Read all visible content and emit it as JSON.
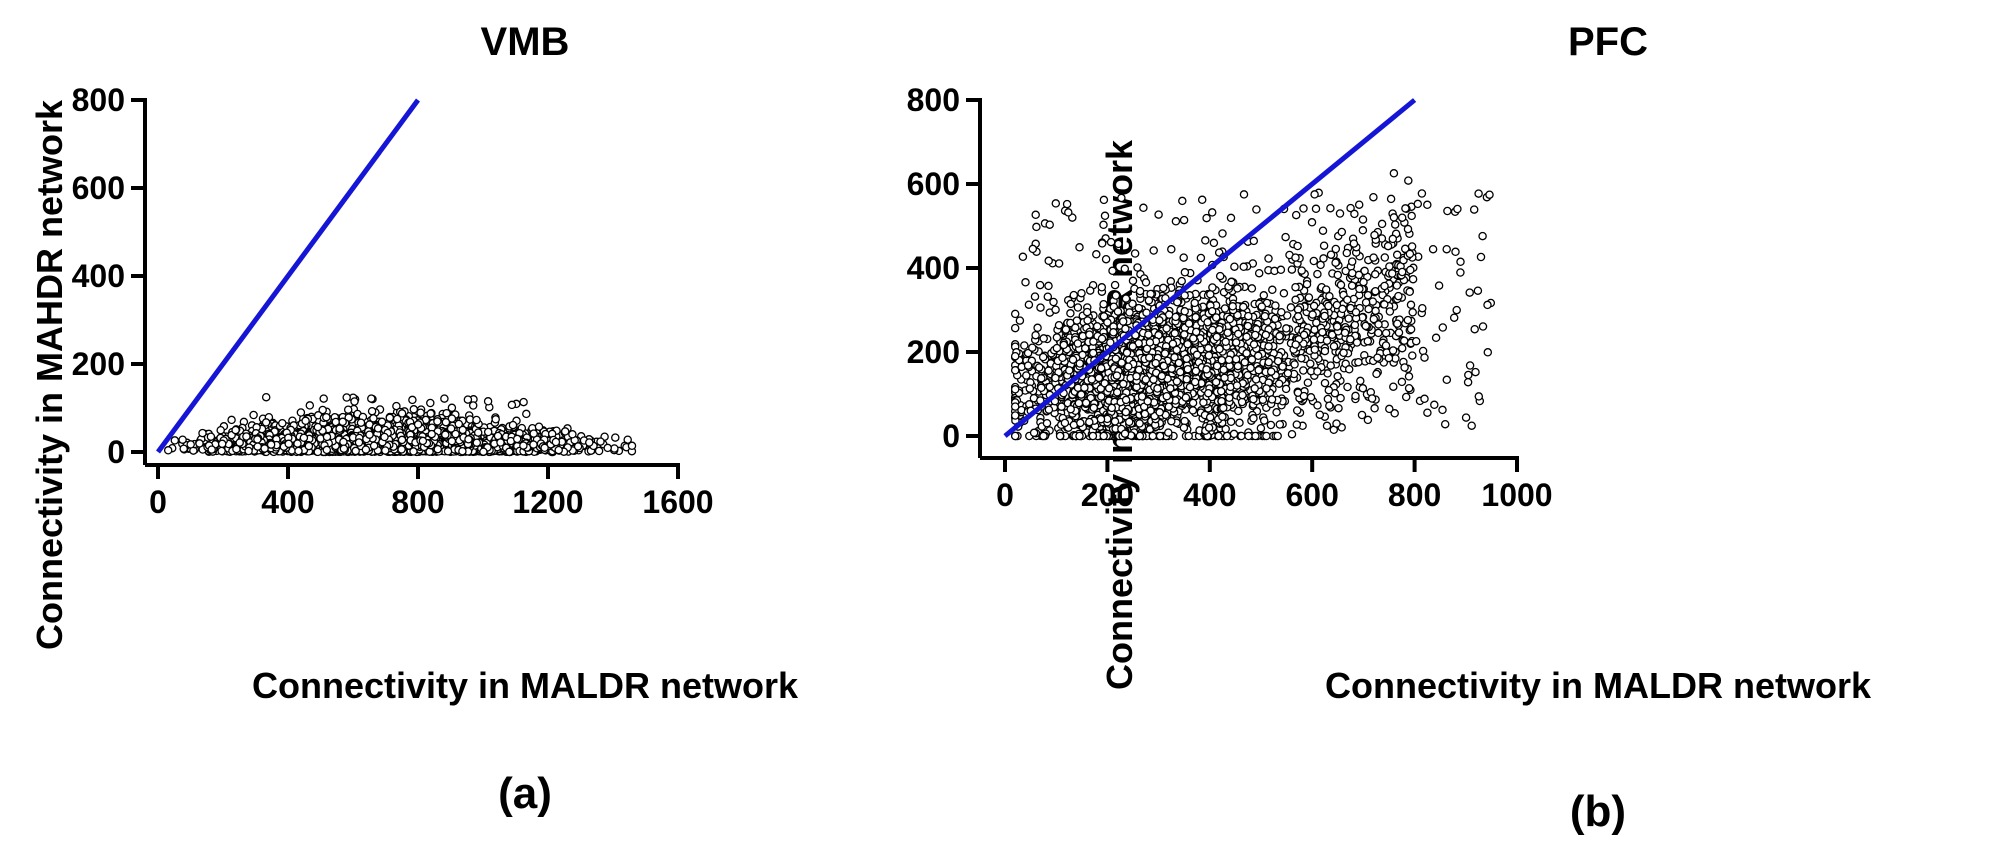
{
  "colors": {
    "axis": "#000000",
    "line": "#1515d6",
    "marker": "#000000"
  },
  "chart_data": [
    {
      "type": "scatter",
      "title": "VMB",
      "caption": "(a)",
      "xlabel": "Connectivity in MALDR network",
      "ylabel": "Connectivity in MAHDR network",
      "xlim": [
        0,
        1600
      ],
      "ylim": [
        0,
        800
      ],
      "xticks": [
        0,
        400,
        800,
        1200,
        1600
      ],
      "yticks": [
        0,
        200,
        400,
        600,
        800
      ],
      "grid": false,
      "reference_line": {
        "x": [
          0,
          800
        ],
        "y": [
          0,
          800
        ]
      },
      "cloud": {
        "x_range": [
          30,
          1460
        ],
        "typical_y_max": 60,
        "peak_y": 125,
        "n_points": 3000
      }
    },
    {
      "type": "scatter",
      "title": "PFC",
      "caption": "(b)",
      "xlabel": "Connectivity in MALDR network",
      "ylabel": "Connectivity in MAHDR network",
      "xlim": [
        0,
        1000
      ],
      "ylim": [
        0,
        800
      ],
      "xticks": [
        0,
        200,
        400,
        600,
        800,
        1000
      ],
      "yticks": [
        0,
        200,
        400,
        600,
        800
      ],
      "grid": false,
      "reference_line": {
        "x": [
          0,
          800
        ],
        "y": [
          0,
          800
        ]
      },
      "cloud": {
        "x_range": [
          20,
          950
        ],
        "y_range": [
          0,
          660
        ],
        "n_points": 3200
      }
    }
  ]
}
